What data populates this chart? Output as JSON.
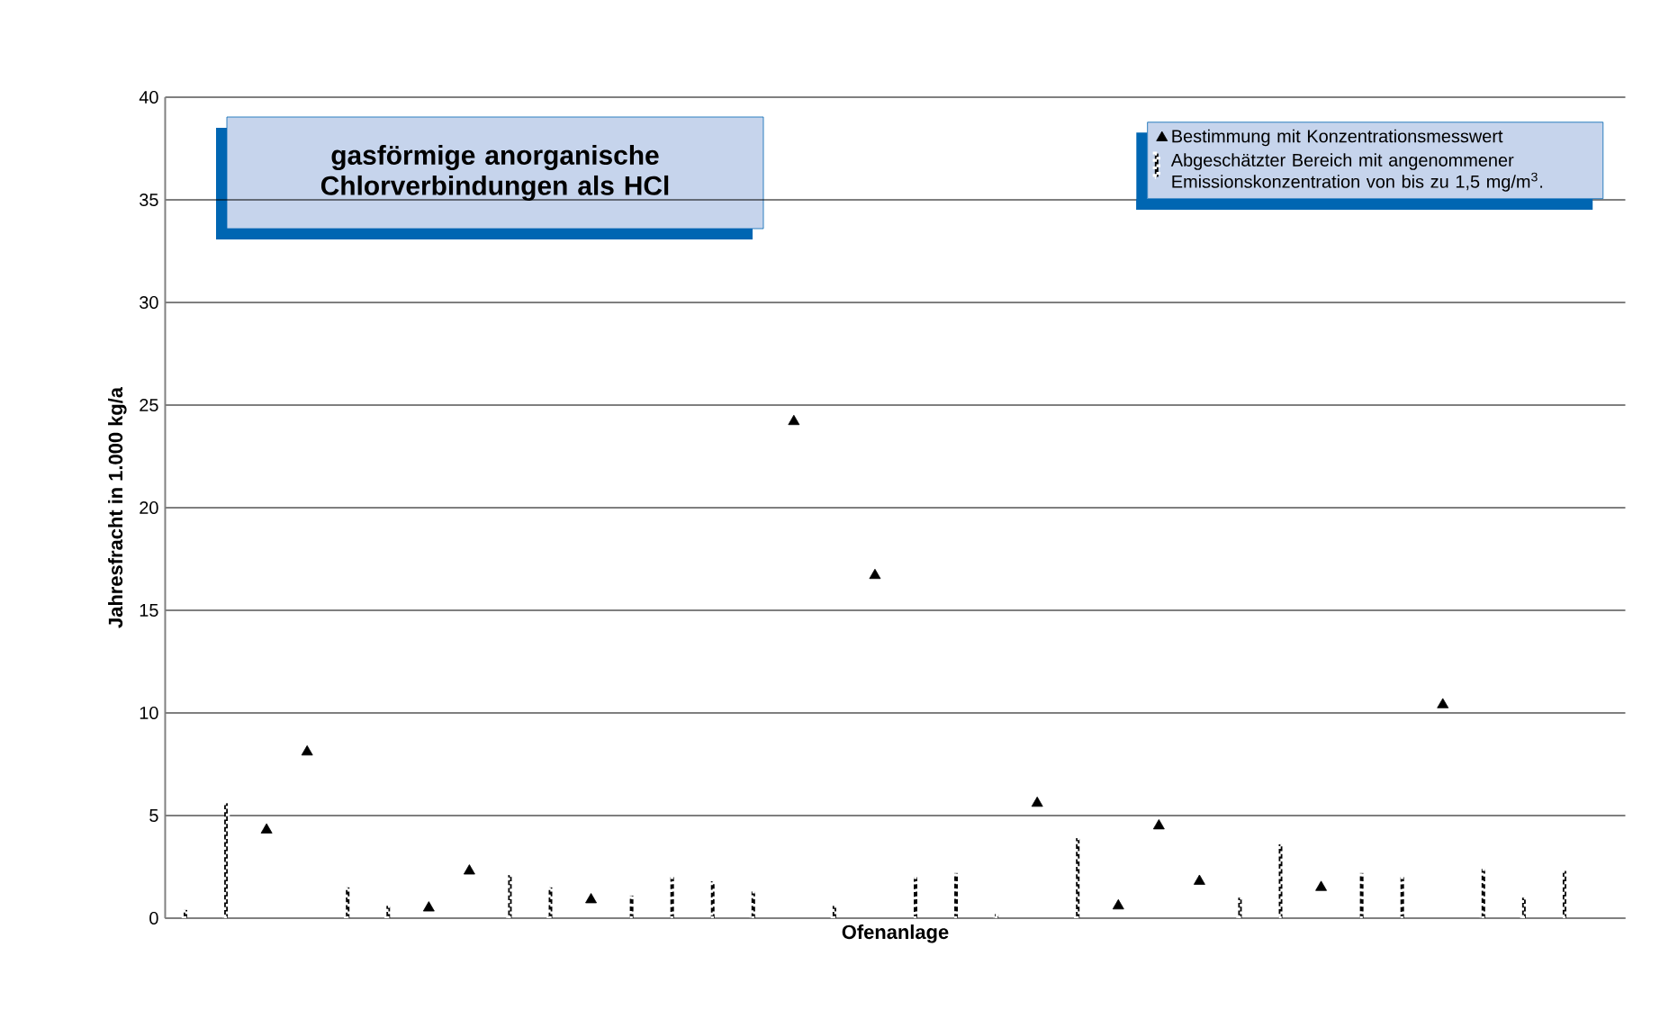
{
  "chart_data": {
    "type": "scatter",
    "title": "gasförmige anorganische Chlorverbindungen als HCl",
    "xlabel": "Ofenanlage",
    "ylabel": "Jahresfracht in 1.000 kg/a",
    "categories": [
      null,
      null,
      null,
      null,
      null,
      null,
      null,
      null,
      null,
      null,
      null,
      null,
      null,
      null,
      null,
      null,
      null,
      null,
      null,
      null,
      null,
      null,
      null,
      null,
      null,
      null,
      null,
      null,
      null,
      null,
      null,
      null,
      null,
      null,
      null,
      null
    ],
    "series": [
      {
        "name": "Bestimmung mit Konzentrationsmesswert",
        "type": "scatter",
        "marker": "triangle",
        "color": "#000000",
        "values": [
          null,
          null,
          4.3,
          8.1,
          null,
          null,
          0.5,
          2.3,
          null,
          null,
          0.9,
          null,
          null,
          null,
          null,
          24.2,
          null,
          16.7,
          null,
          null,
          null,
          5.6,
          null,
          0.6,
          4.5,
          1.8,
          null,
          null,
          1.5,
          null,
          null,
          10.4,
          null,
          null,
          null,
          null
        ]
      },
      {
        "name": "Abgeschätzter Bereich mit angenommener Emissionskonzentration von bis zu 1,5 mg/m$^{3}$.",
        "type": "bar",
        "line_style": "dotted",
        "color": "#000000",
        "values": [
          0.4,
          5.6,
          null,
          null,
          1.5,
          0.6,
          null,
          null,
          2.1,
          1.5,
          null,
          1.1,
          2.0,
          1.8,
          1.3,
          null,
          0.6,
          null,
          2.0,
          2.2,
          0.2,
          null,
          3.9,
          null,
          null,
          null,
          1.0,
          3.6,
          null,
          2.2,
          2.0,
          null,
          2.4,
          1.0,
          2.3,
          null
        ]
      }
    ],
    "ylim": [
      0,
      40
    ],
    "yticks": [
      0,
      5,
      10,
      15,
      20,
      25,
      30,
      35,
      40
    ],
    "grid": "y",
    "legend": "top right"
  }
}
